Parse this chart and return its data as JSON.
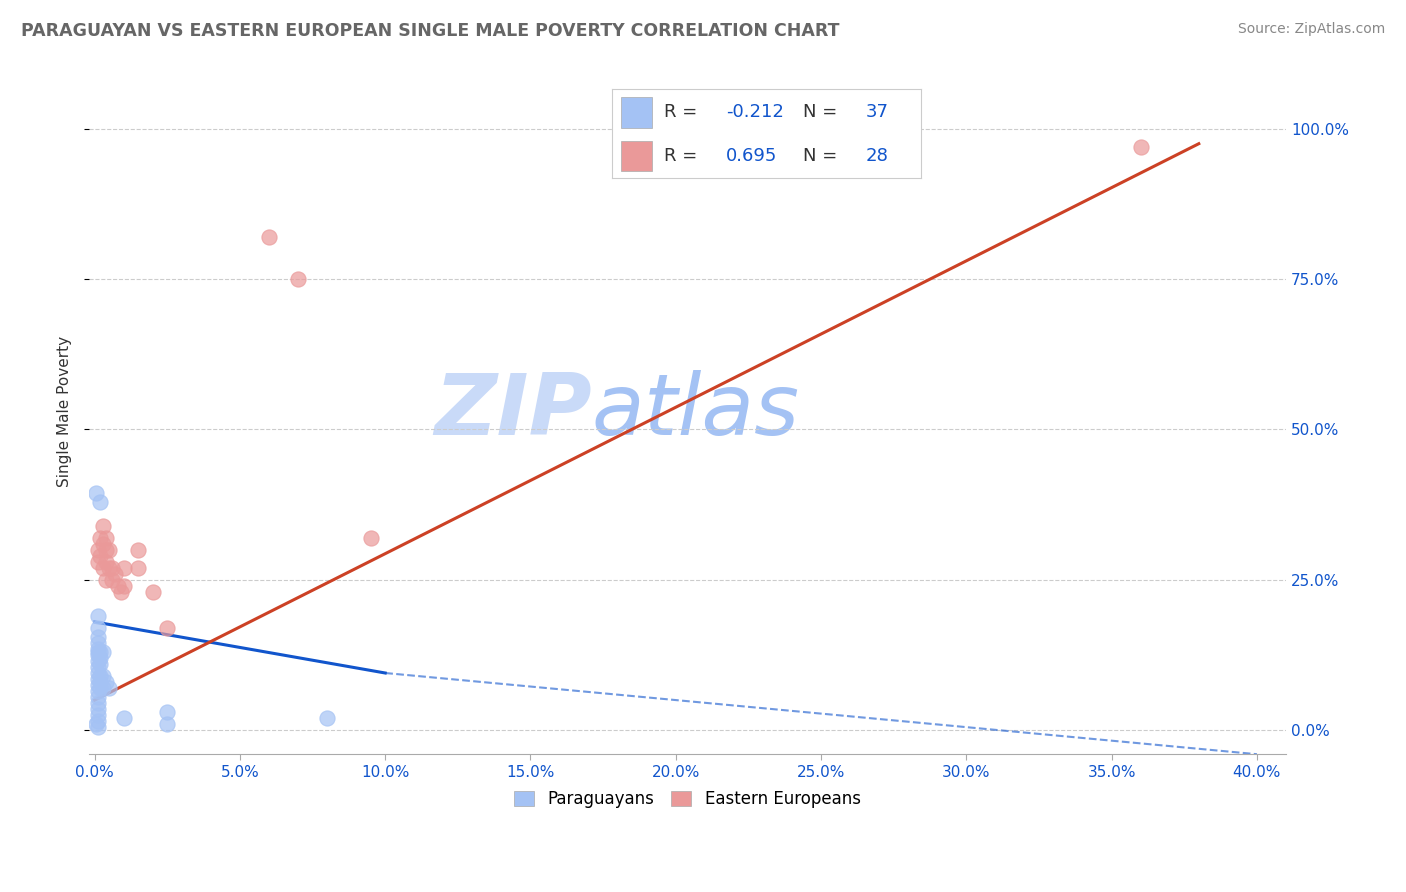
{
  "title": "PARAGUAYAN VS EASTERN EUROPEAN SINGLE MALE POVERTY CORRELATION CHART",
  "source": "Source: ZipAtlas.com",
  "ylabel_label": "Single Male Poverty",
  "xlim": [
    -0.002,
    0.41
  ],
  "ylim": [
    -0.04,
    1.1
  ],
  "xticks": [
    0.0,
    0.05,
    0.1,
    0.15,
    0.2,
    0.25,
    0.3,
    0.35,
    0.4
  ],
  "yticks": [
    0.0,
    0.25,
    0.5,
    0.75,
    1.0
  ],
  "paraguayan_R": -0.212,
  "paraguayan_N": 37,
  "eastern_R": 0.695,
  "eastern_N": 28,
  "blue_dot_color": "#a4c2f4",
  "pink_dot_color": "#ea9999",
  "blue_line_color": "#1155cc",
  "pink_line_color": "#cc4125",
  "blue_scatter": [
    [
      0.001,
      0.13
    ],
    [
      0.001,
      0.17
    ],
    [
      0.001,
      0.19
    ],
    [
      0.001,
      0.145
    ],
    [
      0.001,
      0.155
    ],
    [
      0.001,
      0.135
    ],
    [
      0.001,
      0.125
    ],
    [
      0.001,
      0.115
    ],
    [
      0.001,
      0.105
    ],
    [
      0.001,
      0.095
    ],
    [
      0.001,
      0.085
    ],
    [
      0.001,
      0.075
    ],
    [
      0.001,
      0.065
    ],
    [
      0.001,
      0.055
    ],
    [
      0.001,
      0.045
    ],
    [
      0.001,
      0.035
    ],
    [
      0.001,
      0.025
    ],
    [
      0.001,
      0.015
    ],
    [
      0.001,
      0.005
    ],
    [
      0.002,
      0.13
    ],
    [
      0.002,
      0.12
    ],
    [
      0.002,
      0.11
    ],
    [
      0.002,
      0.09
    ],
    [
      0.002,
      0.08
    ],
    [
      0.002,
      0.07
    ],
    [
      0.003,
      0.13
    ],
    [
      0.003,
      0.09
    ],
    [
      0.003,
      0.07
    ],
    [
      0.004,
      0.08
    ],
    [
      0.005,
      0.07
    ],
    [
      0.01,
      0.02
    ],
    [
      0.002,
      0.38
    ],
    [
      0.025,
      0.03
    ],
    [
      0.025,
      0.01
    ],
    [
      0.08,
      0.02
    ],
    [
      0.0005,
      0.395
    ],
    [
      0.0005,
      0.01
    ]
  ],
  "pink_scatter": [
    [
      0.001,
      0.3
    ],
    [
      0.001,
      0.28
    ],
    [
      0.002,
      0.32
    ],
    [
      0.002,
      0.29
    ],
    [
      0.003,
      0.31
    ],
    [
      0.003,
      0.27
    ],
    [
      0.003,
      0.34
    ],
    [
      0.004,
      0.32
    ],
    [
      0.004,
      0.3
    ],
    [
      0.004,
      0.28
    ],
    [
      0.004,
      0.25
    ],
    [
      0.005,
      0.3
    ],
    [
      0.005,
      0.27
    ],
    [
      0.006,
      0.25
    ],
    [
      0.006,
      0.27
    ],
    [
      0.007,
      0.26
    ],
    [
      0.008,
      0.24
    ],
    [
      0.009,
      0.23
    ],
    [
      0.01,
      0.27
    ],
    [
      0.01,
      0.24
    ],
    [
      0.015,
      0.3
    ],
    [
      0.015,
      0.27
    ],
    [
      0.02,
      0.23
    ],
    [
      0.025,
      0.17
    ],
    [
      0.06,
      0.82
    ],
    [
      0.07,
      0.75
    ],
    [
      0.36,
      0.97
    ],
    [
      0.095,
      0.32
    ]
  ],
  "blue_line": [
    [
      0.0,
      0.18
    ],
    [
      0.1,
      0.095
    ]
  ],
  "blue_line_dashed": [
    [
      0.1,
      0.095
    ],
    [
      0.4,
      -0.04
    ]
  ],
  "pink_line": [
    [
      0.0,
      0.05
    ],
    [
      0.38,
      0.975
    ]
  ],
  "watermark_zip": "ZIP",
  "watermark_atlas": "atlas",
  "watermark_color_zip": "#c9daf8",
  "watermark_color_atlas": "#a4c2f4",
  "legend_labels": [
    "Paraguayans",
    "Eastern Europeans"
  ]
}
